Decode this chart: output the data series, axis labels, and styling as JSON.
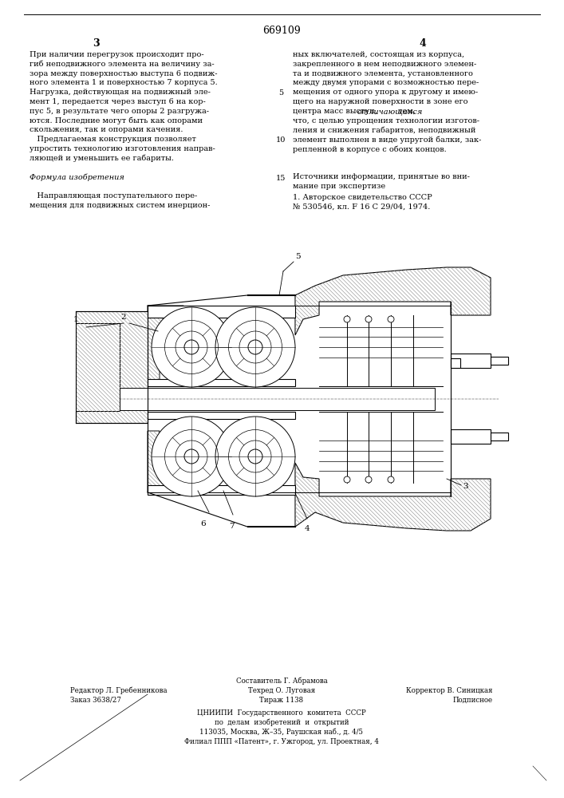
{
  "page_number": "669109",
  "col_left_num": "3",
  "col_right_num": "4",
  "line_number": "5",
  "line_number2": "10",
  "line_number3": "15",
  "col_left_text": [
    "При наличии перегрузок происходит про-",
    "гиб неподвижного элемента на величину за-",
    "зора между поверхностью выступа 6 подвиж-",
    "ного элемента 1 и поверхностью 7 корпуса 5.",
    "Нагрузка, действующая на подвижный эле-",
    "мент 1, передается через выступ 6 на кор-",
    "пус 5, в результате чего опоры 2 разгружа-",
    "ются. Последние могут быть как опорами",
    "скольжения, так и опорами качения.",
    "   Предлагаемая конструкция позволяет",
    "упростить технологию изготовления направ-",
    "ляющей и уменьшить ее габариты.",
    "",
    "Формула изобретения",
    "",
    "   Направляющая поступательного пере-",
    "мещения для подвижных систем инерцион-"
  ],
  "col_right_text": [
    "ных включателей, состоящая из корпуса,",
    "закрепленного в нем неподвижного элемен-",
    "та и подвижного элемента, установленного",
    "между двумя упорами с возможностью пере-",
    "мещения от одного упора к другому и имею-",
    "щего на наружной поверхности в зоне его",
    "центра масс выступ, отличающаяся тем,",
    "что, с целью упрощения технологии изготов-",
    "ления и снижения габаритов, неподвижный",
    "элемент выполнен в виде упругой балки, зак-",
    "репленной в корпусе с обоих концов."
  ],
  "ref_title": "Источники информации, принятые во вни-",
  "ref_title2": "мание при экспертизе",
  "ref1": "1. Авторское свидетельство СССР",
  "ref2": "№ 530546, кл. F 16 C 29/04, 1974.",
  "footer_line0_center": "Составитель Г. Абрамова",
  "footer_line1_left": "Редактор Л. Гребенникова",
  "footer_line1_center": "Техред О. Луговая",
  "footer_line1_right": "Корректор В. Синицкая",
  "footer_line2_left": "Заказ 3638/27",
  "footer_line2_center": "Тираж 1138",
  "footer_line2_right": "Подписное",
  "footer_org1": "ЦНИИПИ  Государственного  комитета  СССР",
  "footer_org2": "по  делам  изобретений  и  открытий",
  "footer_org3": "113035, Москва, Ж–35, Раушская наб., д. 4/5",
  "footer_org4": "Филиал ППП «Патент», г. Ужгород, ул. Проектная, 4",
  "bg_color": "#ffffff",
  "text_color": "#000000"
}
